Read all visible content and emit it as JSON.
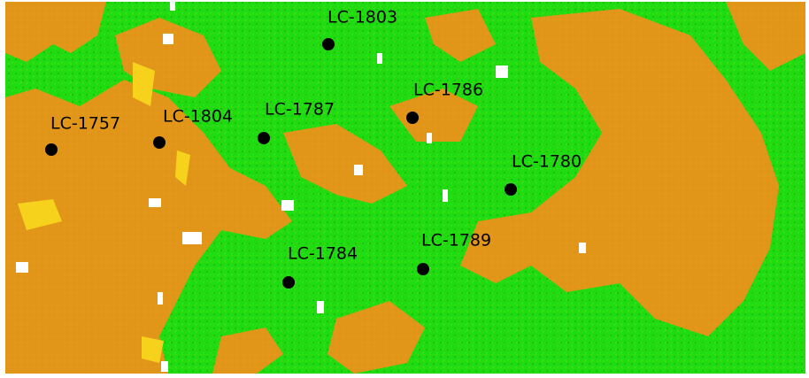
{
  "map": {
    "sites": [
      "LC-1803",
      "LC-1786",
      "LC-1787",
      "LC-1804",
      "LC-1757",
      "LC-1780",
      "LC-1789",
      "LC-1784"
    ]
  }
}
